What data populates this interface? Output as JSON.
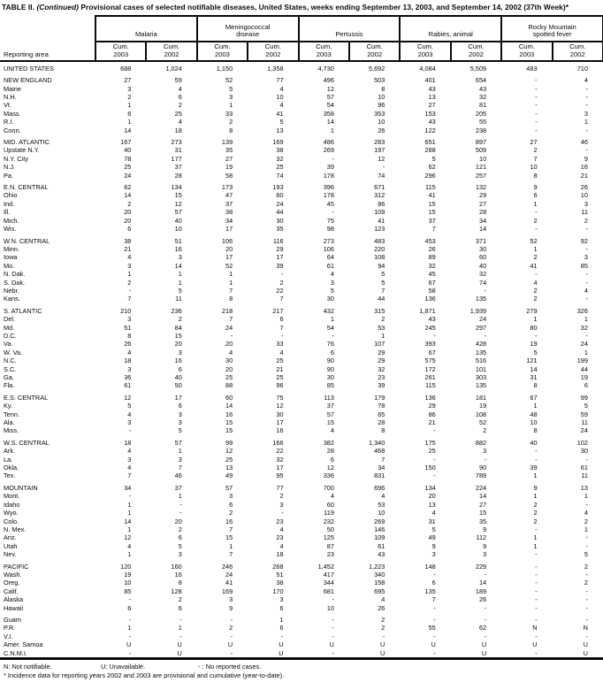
{
  "title": {
    "table_label": "TABLE II.",
    "continued": "(Continued)",
    "rest": "Provisional cases of selected notifiable diseases, United States, weeks ending September 13, 2003, and September 14, 2002",
    "week": "(37th Week)*"
  },
  "header": {
    "reporting_area": "Reporting area",
    "groups": [
      "Malaria",
      "Meningococcal\ndisease",
      "Pertussis",
      "Rabies, animal",
      "Rocky Mountain\nspotted fever"
    ],
    "cum_2003": "Cum.\n2003",
    "cum_2002": "Cum.\n2002"
  },
  "sections": [
    {
      "rows": [
        [
          "UNITED STATES",
          "688",
          "1,024",
          "1,150",
          "1,358",
          "4,730",
          "5,692",
          "4,084",
          "5,509",
          "483",
          "710"
        ]
      ]
    },
    {
      "rows": [
        [
          "NEW ENGLAND",
          "27",
          "59",
          "52",
          "77",
          "496",
          "503",
          "401",
          "654",
          "-",
          "4"
        ],
        [
          "Maine",
          "3",
          "4",
          "5",
          "4",
          "12",
          "8",
          "43",
          "43",
          "-",
          "-"
        ],
        [
          "N.H.",
          "2",
          "6",
          "3",
          "10",
          "57",
          "10",
          "13",
          "32",
          "-",
          "-"
        ],
        [
          "Vt.",
          "1",
          "2",
          "1",
          "4",
          "54",
          "96",
          "27",
          "81",
          "-",
          "-"
        ],
        [
          "Mass.",
          "6",
          "25",
          "33",
          "41",
          "358",
          "353",
          "153",
          "205",
          "-",
          "3"
        ],
        [
          "R.I.",
          "1",
          "4",
          "2",
          "5",
          "14",
          "10",
          "43",
          "55",
          "-",
          "1"
        ],
        [
          "Conn.",
          "14",
          "18",
          "8",
          "13",
          "1",
          "26",
          "122",
          "238",
          "-",
          "-"
        ]
      ]
    },
    {
      "rows": [
        [
          "MID. ATLANTIC",
          "167",
          "273",
          "139",
          "169",
          "486",
          "283",
          "651",
          "897",
          "27",
          "46"
        ],
        [
          "Upstate N.Y.",
          "40",
          "31",
          "35",
          "38",
          "269",
          "197",
          "288",
          "509",
          "2",
          "-"
        ],
        [
          "N.Y. City",
          "78",
          "177",
          "27",
          "32",
          "-",
          "12",
          "5",
          "10",
          "7",
          "9"
        ],
        [
          "N.J.",
          "25",
          "37",
          "19",
          "25",
          "39",
          "-",
          "62",
          "121",
          "10",
          "16"
        ],
        [
          "Pa.",
          "24",
          "28",
          "58",
          "74",
          "178",
          "74",
          "296",
          "257",
          "8",
          "21"
        ]
      ]
    },
    {
      "rows": [
        [
          "E.N. CENTRAL",
          "62",
          "134",
          "173",
          "193",
          "396",
          "671",
          "115",
          "132",
          "9",
          "26"
        ],
        [
          "Ohio",
          "14",
          "15",
          "47",
          "60",
          "178",
          "312",
          "41",
          "29",
          "6",
          "10"
        ],
        [
          "Ind.",
          "2",
          "12",
          "37",
          "24",
          "45",
          "86",
          "15",
          "27",
          "1",
          "3"
        ],
        [
          "Ill.",
          "20",
          "57",
          "38",
          "44",
          "-",
          "109",
          "15",
          "28",
          "-",
          "11"
        ],
        [
          "Mich.",
          "20",
          "40",
          "34",
          "30",
          "75",
          "41",
          "37",
          "34",
          "2",
          "2"
        ],
        [
          "Wis.",
          "6",
          "10",
          "17",
          "35",
          "98",
          "123",
          "7",
          "14",
          "-",
          "-"
        ]
      ]
    },
    {
      "rows": [
        [
          "W.N. CENTRAL",
          "38",
          "51",
          "106",
          "116",
          "273",
          "483",
          "453",
          "371",
          "52",
          "92"
        ],
        [
          "Minn.",
          "21",
          "16",
          "20",
          "29",
          "106",
          "220",
          "26",
          "30",
          "1",
          "-"
        ],
        [
          "Iowa",
          "4",
          "3",
          "17",
          "17",
          "64",
          "108",
          "89",
          "60",
          "2",
          "3"
        ],
        [
          "Mo.",
          "3",
          "14",
          "52",
          "39",
          "61",
          "94",
          "32",
          "40",
          "41",
          "85"
        ],
        [
          "N. Dak.",
          "1",
          "1",
          "1",
          "-",
          "4",
          "5",
          "45",
          "32",
          "-",
          "-"
        ],
        [
          "S. Dak.",
          "2",
          "1",
          "1",
          "2",
          "3",
          "5",
          "67",
          "74",
          "4",
          "-"
        ],
        [
          "Nebr.",
          "-",
          "5",
          "7",
          "22",
          "5",
          "7",
          "58",
          "-",
          "2",
          "4"
        ],
        [
          "Kans.",
          "7",
          "11",
          "8",
          "7",
          "30",
          "44",
          "136",
          "135",
          "2",
          "-"
        ]
      ]
    },
    {
      "rows": [
        [
          "S. ATLANTIC",
          "210",
          "236",
          "218",
          "217",
          "432",
          "315",
          "1,871",
          "1,939",
          "279",
          "326"
        ],
        [
          "Del.",
          "3",
          "2",
          "7",
          "6",
          "1",
          "2",
          "43",
          "24",
          "1",
          "1"
        ],
        [
          "Md.",
          "51",
          "84",
          "24",
          "7",
          "54",
          "53",
          "245",
          "297",
          "80",
          "32"
        ],
        [
          "D.C.",
          "8",
          "15",
          "-",
          "-",
          "-",
          "1",
          "-",
          "-",
          "-",
          "-"
        ],
        [
          "Va.",
          "26",
          "20",
          "20",
          "33",
          "76",
          "107",
          "393",
          "428",
          "19",
          "24"
        ],
        [
          "W. Va.",
          "4",
          "3",
          "4",
          "4",
          "6",
          "29",
          "67",
          "135",
          "5",
          "1"
        ],
        [
          "N.C.",
          "18",
          "16",
          "30",
          "25",
          "90",
          "29",
          "575",
          "516",
          "121",
          "199"
        ],
        [
          "S.C.",
          "3",
          "6",
          "20",
          "21",
          "90",
          "32",
          "172",
          "101",
          "14",
          "44"
        ],
        [
          "Ga.",
          "36",
          "40",
          "25",
          "25",
          "30",
          "23",
          "261",
          "303",
          "31",
          "19"
        ],
        [
          "Fla.",
          "61",
          "50",
          "88",
          "96",
          "85",
          "39",
          "115",
          "135",
          "8",
          "6"
        ]
      ]
    },
    {
      "rows": [
        [
          "E.S. CENTRAL",
          "12",
          "17",
          "60",
          "75",
          "113",
          "179",
          "136",
          "181",
          "67",
          "99"
        ],
        [
          "Ky.",
          "5",
          "6",
          "14",
          "12",
          "37",
          "78",
          "29",
          "19",
          "1",
          "5"
        ],
        [
          "Tenn.",
          "4",
          "3",
          "16",
          "30",
          "57",
          "65",
          "86",
          "108",
          "48",
          "59"
        ],
        [
          "Ala.",
          "3",
          "3",
          "15",
          "17",
          "15",
          "28",
          "21",
          "52",
          "10",
          "11"
        ],
        [
          "Miss.",
          "-",
          "5",
          "15",
          "16",
          "4",
          "8",
          "-",
          "2",
          "8",
          "24"
        ]
      ]
    },
    {
      "rows": [
        [
          "W.S. CENTRAL",
          "18",
          "57",
          "99",
          "166",
          "382",
          "1,340",
          "175",
          "882",
          "40",
          "102"
        ],
        [
          "Ark.",
          "4",
          "1",
          "12",
          "22",
          "28",
          "468",
          "25",
          "3",
          "-",
          "30"
        ],
        [
          "La.",
          "3",
          "3",
          "25",
          "32",
          "6",
          "7",
          "-",
          "-",
          "-",
          "-"
        ],
        [
          "Okla.",
          "4",
          "7",
          "13",
          "17",
          "12",
          "34",
          "150",
          "90",
          "39",
          "61"
        ],
        [
          "Tex.",
          "7",
          "46",
          "49",
          "95",
          "336",
          "831",
          "-",
          "789",
          "1",
          "11"
        ]
      ]
    },
    {
      "rows": [
        [
          "MOUNTAIN",
          "34",
          "37",
          "57",
          "77",
          "700",
          "696",
          "134",
          "224",
          "9",
          "13"
        ],
        [
          "Mont.",
          "-",
          "1",
          "3",
          "2",
          "4",
          "4",
          "20",
          "14",
          "1",
          "1"
        ],
        [
          "Idaho",
          "1",
          "-",
          "6",
          "3",
          "60",
          "53",
          "13",
          "27",
          "2",
          "-"
        ],
        [
          "Wyo.",
          "1",
          "-",
          "2",
          "-",
          "119",
          "10",
          "4",
          "15",
          "2",
          "4"
        ],
        [
          "Colo.",
          "14",
          "20",
          "16",
          "23",
          "232",
          "269",
          "31",
          "35",
          "2",
          "2"
        ],
        [
          "N. Mex.",
          "1",
          "2",
          "7",
          "4",
          "50",
          "146",
          "5",
          "9",
          "-",
          "1"
        ],
        [
          "Ariz.",
          "12",
          "6",
          "15",
          "23",
          "125",
          "109",
          "49",
          "112",
          "1",
          "-"
        ],
        [
          "Utah",
          "4",
          "5",
          "1",
          "4",
          "87",
          "61",
          "9",
          "9",
          "1",
          "-"
        ],
        [
          "Nev.",
          "1",
          "3",
          "7",
          "18",
          "23",
          "43",
          "3",
          "3",
          "-",
          "5"
        ]
      ]
    },
    {
      "rows": [
        [
          "PACIFIC",
          "120",
          "160",
          "246",
          "268",
          "1,452",
          "1,223",
          "148",
          "229",
          "-",
          "2"
        ],
        [
          "Wash.",
          "19",
          "16",
          "24",
          "51",
          "417",
          "340",
          "-",
          "-",
          "-",
          "-"
        ],
        [
          "Oreg.",
          "10",
          "8",
          "41",
          "38",
          "344",
          "158",
          "6",
          "14",
          "-",
          "2"
        ],
        [
          "Calif.",
          "85",
          "128",
          "169",
          "170",
          "681",
          "695",
          "135",
          "189",
          "-",
          "-"
        ],
        [
          "Alaska",
          "-",
          "2",
          "3",
          "3",
          "-",
          "4",
          "7",
          "26",
          "-",
          "-"
        ],
        [
          "Hawaii",
          "6",
          "6",
          "9",
          "6",
          "10",
          "26",
          "-",
          "-",
          "-",
          "-"
        ]
      ]
    },
    {
      "rows": [
        [
          "Guam",
          "-",
          "-",
          "-",
          "1",
          "-",
          "2",
          "-",
          "-",
          "-",
          "-"
        ],
        [
          "P.R.",
          "1",
          "1",
          "2",
          "6",
          "-",
          "2",
          "55",
          "62",
          "N",
          "N"
        ],
        [
          "V.I.",
          "-",
          "-",
          "-",
          "-",
          "-",
          "-",
          "-",
          "-",
          "-",
          "-"
        ],
        [
          "Amer. Samoa",
          "U",
          "U",
          "U",
          "U",
          "U",
          "U",
          "U",
          "U",
          "U",
          "U"
        ],
        [
          "C.N.M.I.",
          "-",
          "U",
          "-",
          "U",
          "-",
          "U",
          "-",
          "U",
          "-",
          "U"
        ]
      ]
    }
  ],
  "footnotes": {
    "legend_n": "N: Not notifiable.",
    "legend_u": "U: Unavailable.",
    "legend_dash": "- : No reported cases.",
    "star": "* Incidence data for reporting years 2002 and 2003 are provisional and cumulative (year-to-date)."
  }
}
